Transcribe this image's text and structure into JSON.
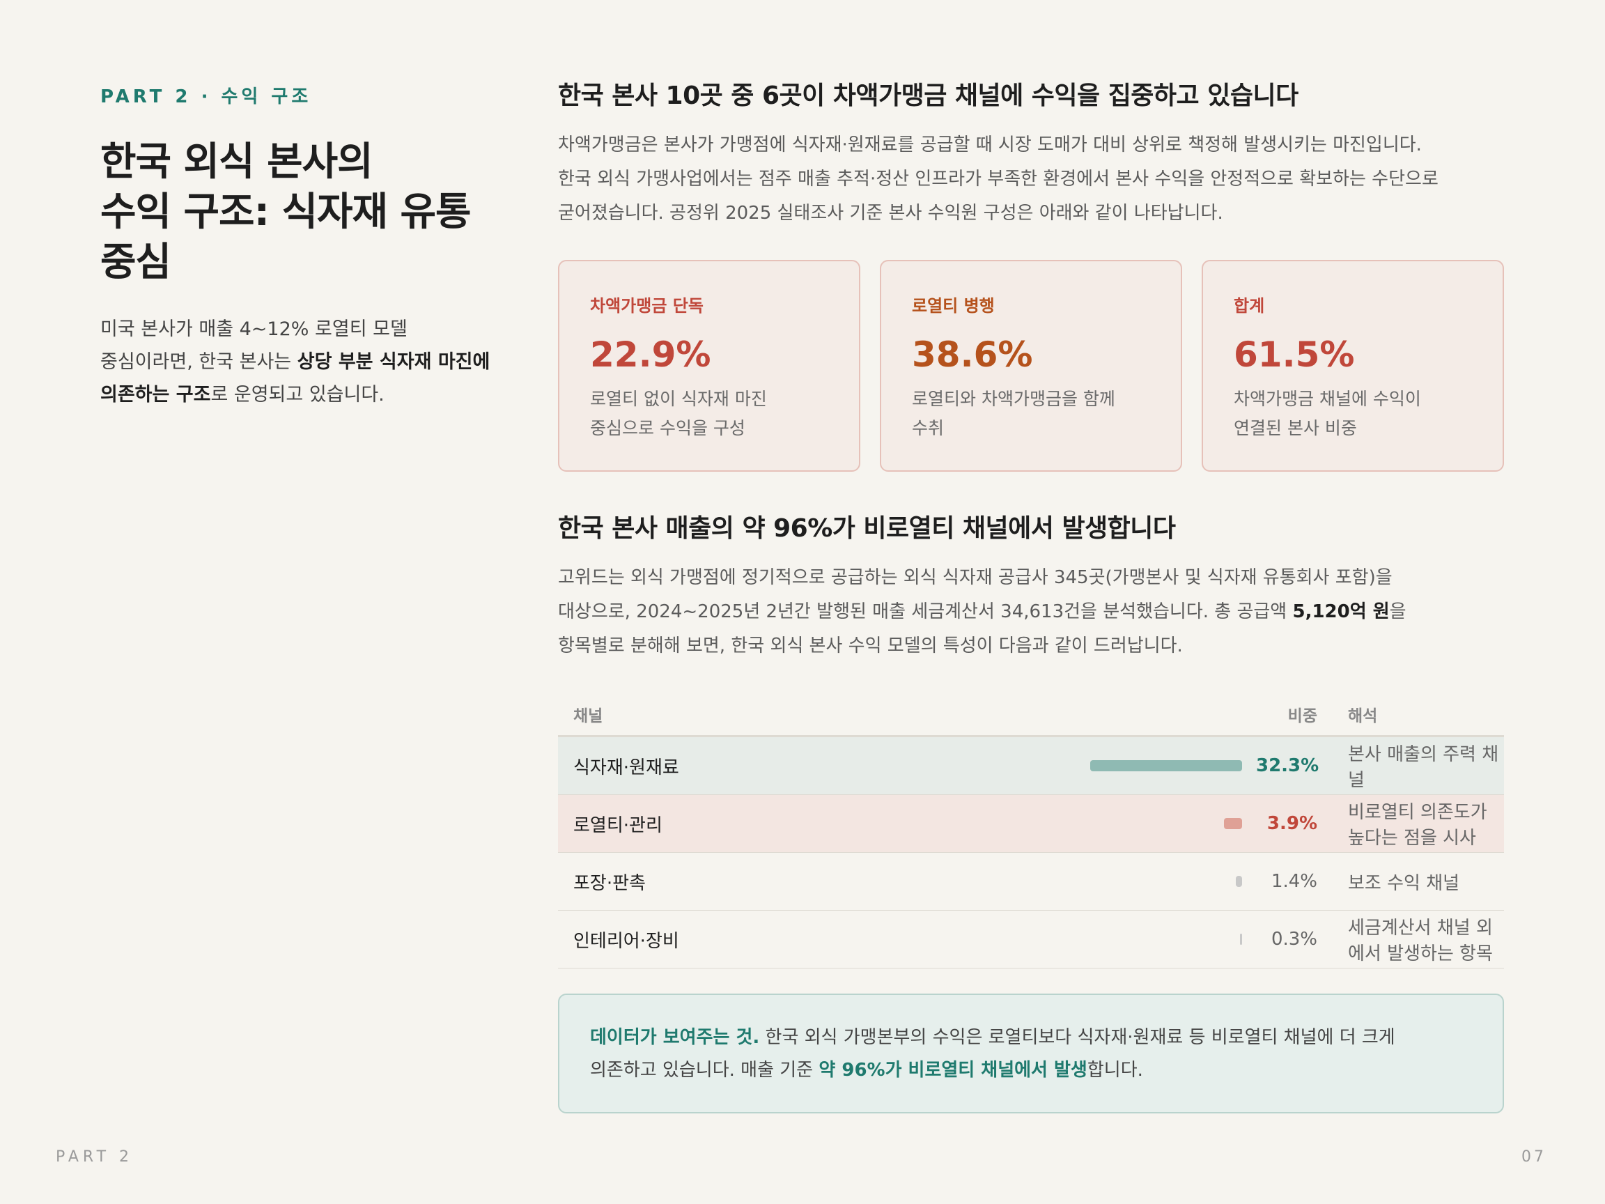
{
  "eyebrow": "PART 2 · 수익 구조",
  "left": {
    "title_line1": "한국 외식 본사의",
    "title_line2": "수익 구조: 식자재 유통",
    "title_line3": "중심",
    "desc_1": "미국 본사가 매출 4~12% 로열티 모델",
    "desc_2a": "중심이라면, 한국 본사는 ",
    "desc_2b": "상당 부분 식자재 마진에",
    "desc_3a": "의존하는 구조",
    "desc_3b": "로 운영되고 있습니다."
  },
  "section1": {
    "heading": "한국 본사 10곳 중 6곳이 차액가맹금 채널에 수익을 집중하고 있습니다",
    "line1": "차액가맹금은 본사가 가맹점에 식자재·원재료를 공급할 때 시장 도매가 대비 상위로 책정해 발생시키는 마진입니다.",
    "line2": "한국 외식 가맹사업에서는 점주 매출 추적·정산 인프라가 부족한 환경에서 본사 수익을 안정적으로 확보하는 수단으로",
    "line3": "굳어졌습니다. 공정위 2025 실태조사 기준 본사 수익원 구성은 아래와 같이 나타납니다."
  },
  "cards": [
    {
      "label": "차액가맹금 단독",
      "value": "22.9%",
      "desc1": "로열티 없이 식자재 마진",
      "desc2": "중심으로 수익을 구성",
      "color": "#c0473a"
    },
    {
      "label": "로열티 병행",
      "value": "38.6%",
      "desc1": "로열티와 차액가맹금을 함께",
      "desc2": "수취",
      "color": "#b5521c"
    },
    {
      "label": "합계",
      "value": "61.5%",
      "desc1": "차액가맹금 채널에 수익이",
      "desc2": "연결된 본사 비중",
      "color": "#c0473a"
    }
  ],
  "section2": {
    "heading": "한국 본사 매출의 약 96%가 비로열티 채널에서 발생합니다",
    "line1": "고위드는 외식 가맹점에 정기적으로 공급하는 외식 식자재 공급사 345곳(가맹본사 및 식자재 유통회사 포함)을",
    "line2a": "대상으로, 2024~2025년 2년간 발행된 매출 세금계산서 34,613건을 분석했습니다. 총 공급액 ",
    "line2b": "5,120억 원",
    "line2c": "을",
    "line3": "항목별로 분해해 보면, 한국 외식 본사 수익 모델의 특성이 다음과 같이 드러납니다."
  },
  "table": {
    "headers": {
      "channel": "채널",
      "ratio": "비중",
      "interp": "해석"
    },
    "rows": [
      {
        "channel": "식자재·원재료",
        "pct_label": "32.3%",
        "share": 32.3,
        "interp": "본사 매출의 주력 채널",
        "bar_color": "#8fbab3"
      },
      {
        "channel": "로열티·관리",
        "pct_label": "3.9%",
        "share": 3.9,
        "interp": "비로열티 의존도가 높다는 점을 시사",
        "bar_color": "#dfa196"
      },
      {
        "channel": "포장·판촉",
        "pct_label": "1.4%",
        "share": 1.4,
        "interp": "보조 수익 채널",
        "bar_color": "#c8c8c8"
      },
      {
        "channel": "인테리어·장비",
        "pct_label": "0.3%",
        "share": 0.3,
        "interp": "세금계산서 채널 외에서 발생하는 항목",
        "bar_color": "#c8c8c8"
      }
    ]
  },
  "callout": {
    "lead": "데이터가 보여주는 것.",
    "text1": " 한국 외식 가맹본부의 수익은 로열티보다 식자재·원재료 등 비로열티 채널에 더 크게",
    "text2a": "의존하고 있습니다. 매출 기준 ",
    "text2b": "약 96%가 비로열티 채널에서 발생",
    "text2c": "합니다."
  },
  "footer": {
    "left": "PART 2",
    "right": "07"
  }
}
